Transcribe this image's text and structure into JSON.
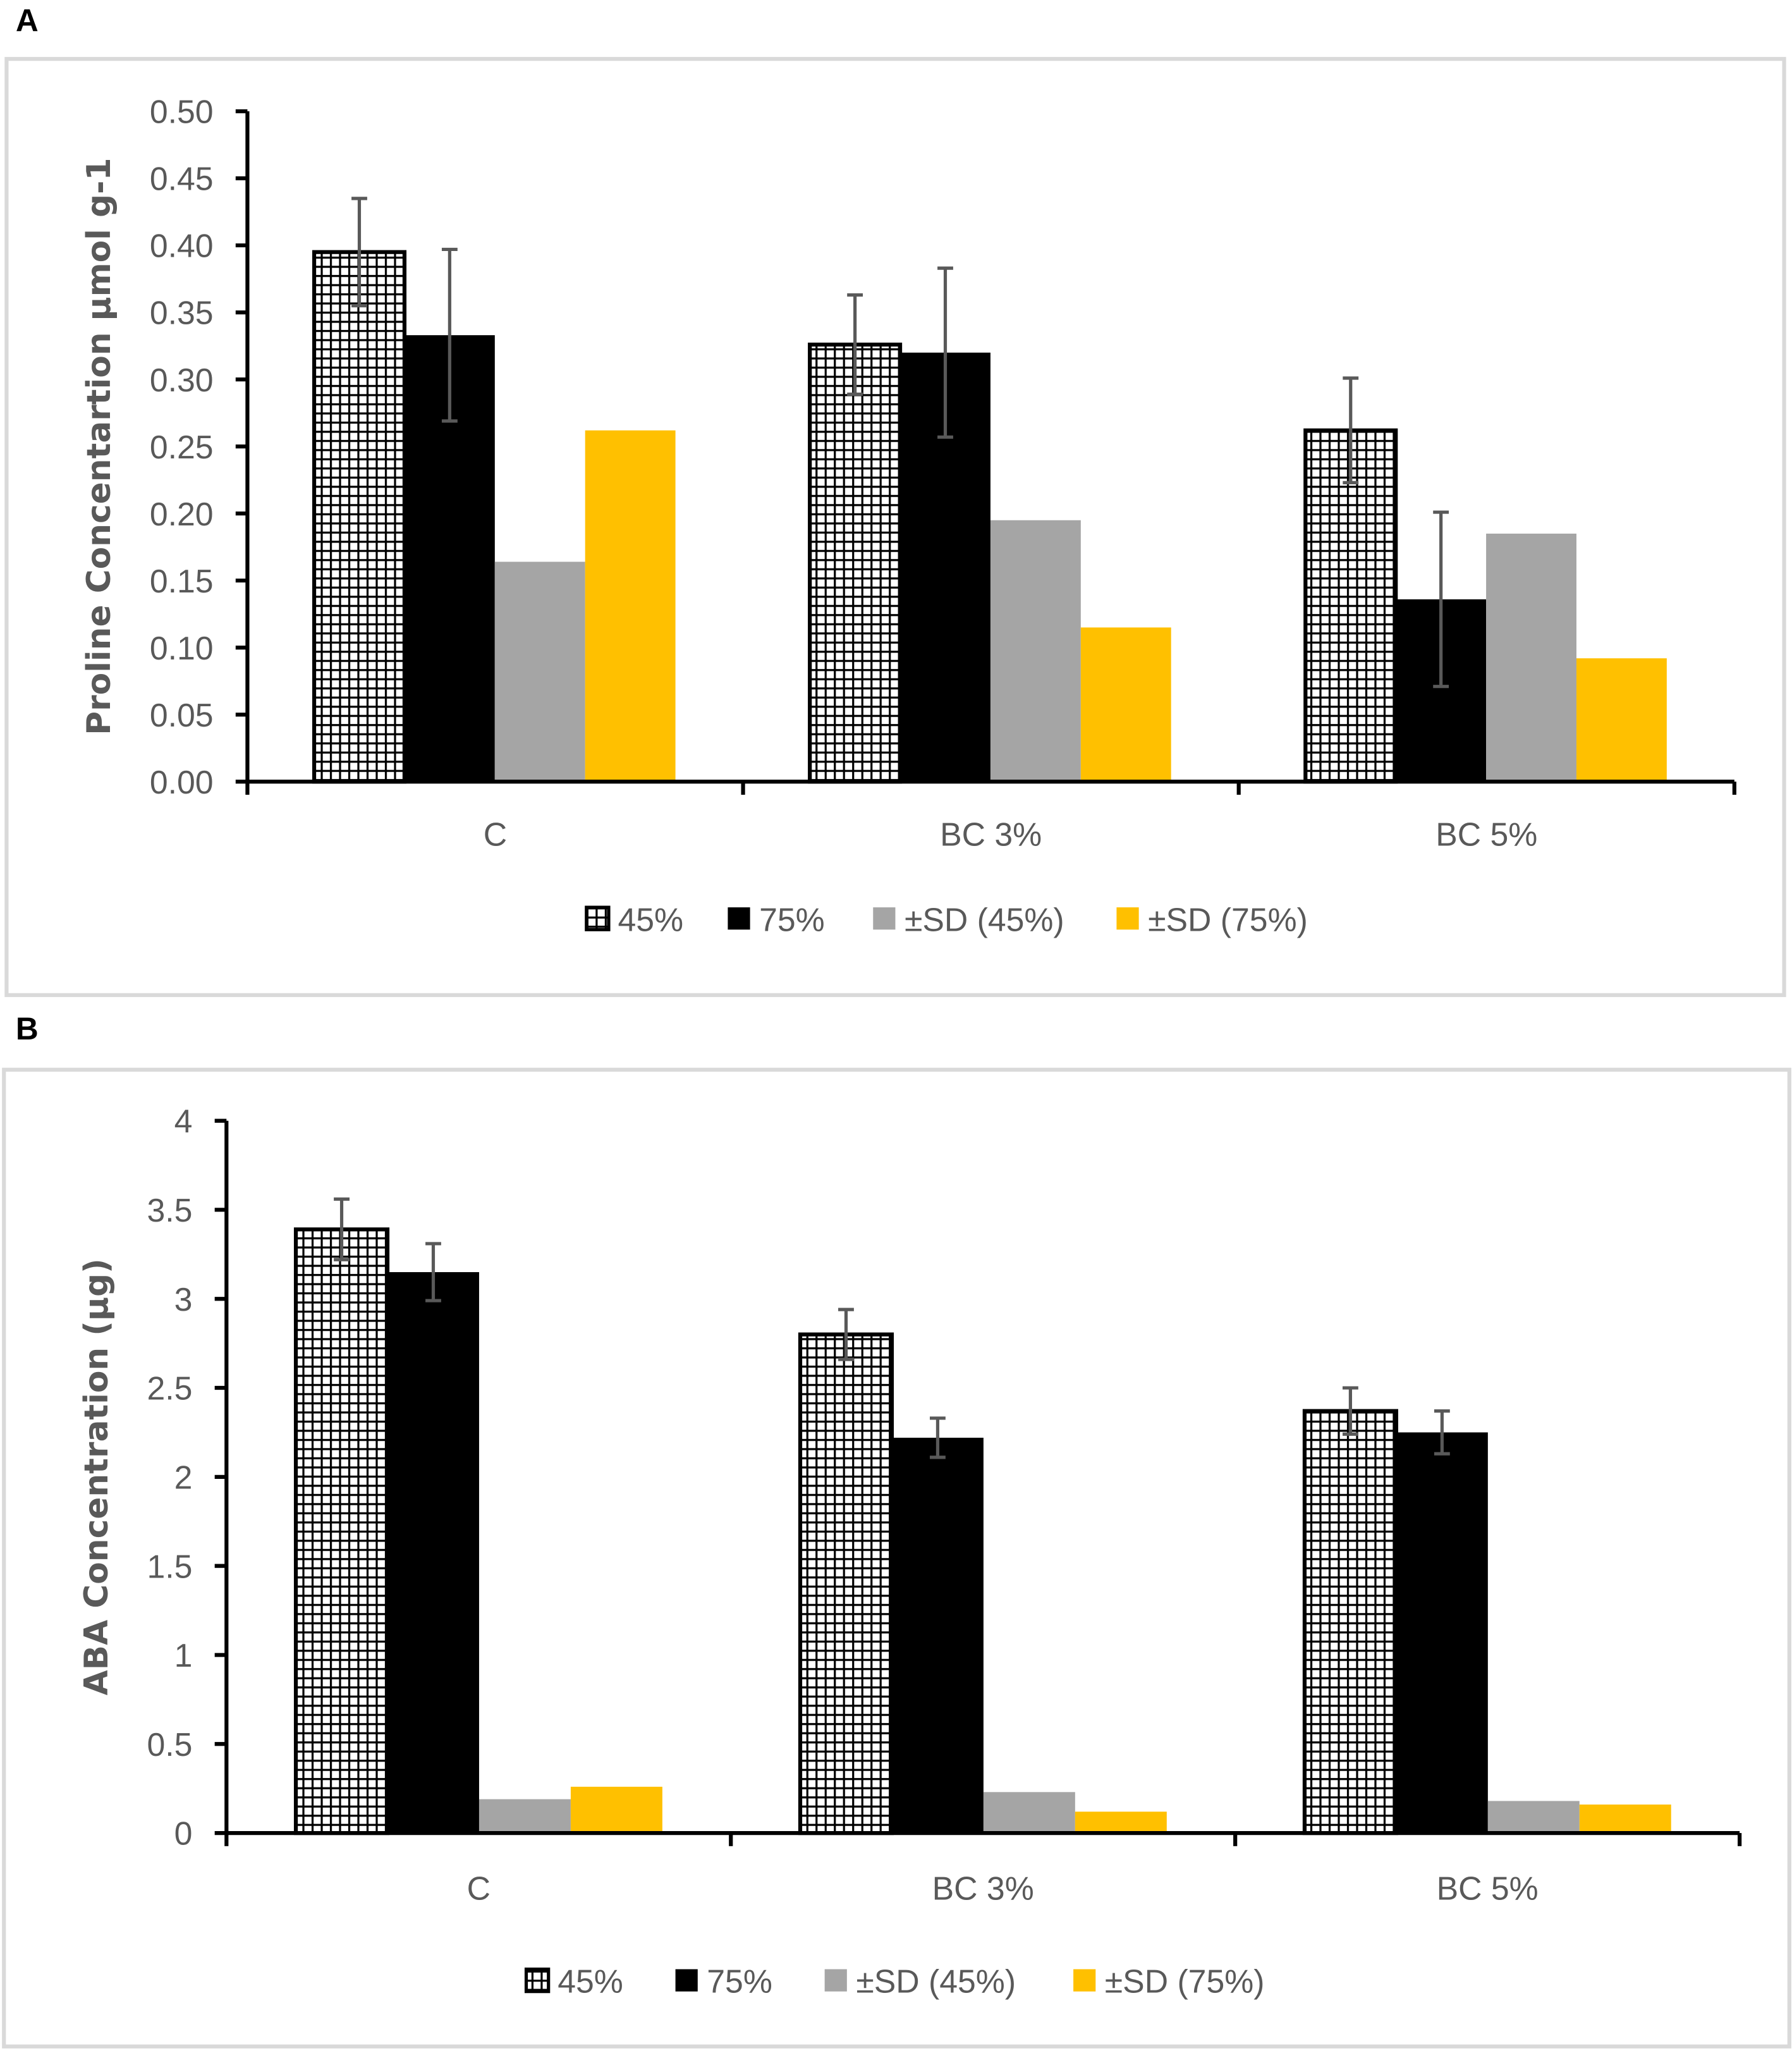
{
  "colors": {
    "s45": "pattern-grid",
    "s75": "#000000",
    "sd45": "#A5A5A5",
    "sd75": "#FFC000",
    "axis": "#000000",
    "error": "#595959",
    "text": "#595959"
  },
  "chart_data": [
    {
      "panel": "A",
      "type": "bar",
      "title": "",
      "xlabel": "",
      "ylabel": "Proline Concentartion µmol g-1",
      "ylim": [
        0,
        0.5
      ],
      "ytick_step": 0.05,
      "ytick_labels": [
        "0.00",
        "0.05",
        "0.10",
        "0.15",
        "0.20",
        "0.25",
        "0.30",
        "0.35",
        "0.40",
        "0.45",
        "0.50"
      ],
      "categories": [
        "C",
        "BC 3%",
        "BC 5%"
      ],
      "grid": false,
      "legend_position": "bottom",
      "series": [
        {
          "name": "45%",
          "key": "s45",
          "values": [
            0.395,
            0.326,
            0.262
          ],
          "error": [
            0.04,
            0.037,
            0.039
          ]
        },
        {
          "name": "75%",
          "key": "s75",
          "values": [
            0.333,
            0.32,
            0.136
          ],
          "error": [
            0.064,
            0.063,
            0.065
          ]
        },
        {
          "name": "±SD (45%)",
          "key": "sd45",
          "values": [
            0.164,
            0.195,
            0.185
          ],
          "error": null
        },
        {
          "name": "±SD (75%)",
          "key": "sd75",
          "values": [
            0.262,
            0.115,
            0.092
          ],
          "error": null
        }
      ]
    },
    {
      "panel": "B",
      "type": "bar",
      "title": "",
      "xlabel": "",
      "ylabel": "ABA Concentration (µg)",
      "ylim": [
        0,
        4
      ],
      "ytick_step": 0.5,
      "ytick_labels": [
        "0",
        "0.5",
        "1",
        "1.5",
        "2",
        "2.5",
        "3",
        "3.5",
        "4"
      ],
      "categories": [
        "C",
        "BC 3%",
        "BC 5%"
      ],
      "grid": false,
      "legend_position": "bottom",
      "series": [
        {
          "name": "45%",
          "key": "s45",
          "values": [
            3.39,
            2.8,
            2.37
          ],
          "error": [
            0.17,
            0.14,
            0.13
          ]
        },
        {
          "name": "75%",
          "key": "s75",
          "values": [
            3.15,
            2.22,
            2.25
          ],
          "error": [
            0.16,
            0.11,
            0.12
          ]
        },
        {
          "name": "±SD (45%)",
          "key": "sd45",
          "values": [
            0.19,
            0.23,
            0.18
          ],
          "error": null
        },
        {
          "name": "±SD (75%)",
          "key": "sd75",
          "values": [
            0.26,
            0.12,
            0.16
          ],
          "error": null
        }
      ]
    }
  ]
}
